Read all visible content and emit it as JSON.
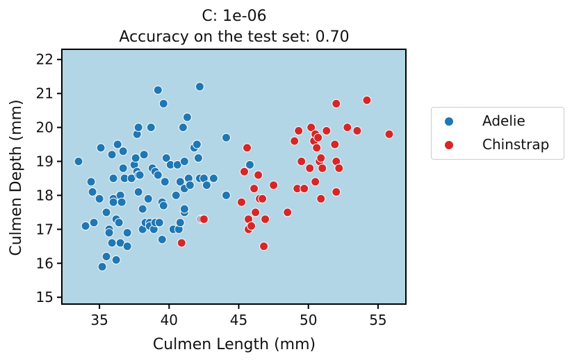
{
  "chart_data": {
    "type": "scatter",
    "title_line1": "C: 1e-06",
    "title_line2": "Accuracy on the test set: 0.70",
    "xlabel": "Culmen Length (mm)",
    "ylabel": "Culmen Depth (mm)",
    "xlim": [
      32.3,
      57.0
    ],
    "ylim": [
      14.8,
      22.3
    ],
    "xticks": [
      35,
      40,
      45,
      50,
      55
    ],
    "yticks": [
      15,
      16,
      17,
      18,
      19,
      20,
      21,
      22
    ],
    "background_color": "#b3d6e6",
    "grid": false,
    "legend_position": "outside-right",
    "series": [
      {
        "name": "Adelie",
        "color": "#1f77b4",
        "points": [
          [
            33.5,
            19.0
          ],
          [
            34.0,
            17.1
          ],
          [
            34.4,
            18.4
          ],
          [
            34.5,
            18.1
          ],
          [
            34.6,
            17.2
          ],
          [
            35.0,
            17.9
          ],
          [
            35.1,
            19.4
          ],
          [
            35.2,
            15.9
          ],
          [
            35.5,
            17.5
          ],
          [
            35.5,
            16.2
          ],
          [
            35.7,
            17.0
          ],
          [
            35.7,
            16.9
          ],
          [
            35.9,
            19.2
          ],
          [
            35.9,
            16.6
          ],
          [
            36.0,
            17.9
          ],
          [
            36.0,
            17.8
          ],
          [
            36.0,
            18.5
          ],
          [
            36.2,
            17.3
          ],
          [
            36.2,
            16.1
          ],
          [
            36.3,
            19.5
          ],
          [
            36.4,
            17.2
          ],
          [
            36.5,
            18.0
          ],
          [
            36.5,
            16.6
          ],
          [
            36.6,
            17.8
          ],
          [
            36.7,
            18.8
          ],
          [
            36.7,
            19.3
          ],
          [
            36.8,
            18.5
          ],
          [
            37.0,
            16.9
          ],
          [
            37.0,
            16.5
          ],
          [
            37.3,
            18.5
          ],
          [
            37.5,
            18.9
          ],
          [
            37.6,
            19.1
          ],
          [
            37.7,
            18.7
          ],
          [
            37.7,
            19.8
          ],
          [
            37.8,
            20.0
          ],
          [
            37.8,
            18.1
          ],
          [
            37.8,
            18.6
          ],
          [
            37.9,
            18.6
          ],
          [
            38.1,
            17.6
          ],
          [
            38.1,
            17.0
          ],
          [
            38.2,
            19.2
          ],
          [
            38.3,
            17.2
          ],
          [
            38.5,
            17.9
          ],
          [
            38.6,
            17.2
          ],
          [
            38.6,
            17.1
          ],
          [
            38.7,
            20.0
          ],
          [
            38.8,
            18.8
          ],
          [
            38.9,
            17.0
          ],
          [
            39.0,
            18.7
          ],
          [
            39.0,
            17.2
          ],
          [
            39.2,
            21.1
          ],
          [
            39.2,
            18.6
          ],
          [
            39.3,
            17.2
          ],
          [
            39.5,
            17.8
          ],
          [
            39.5,
            16.7
          ],
          [
            39.6,
            20.7
          ],
          [
            39.6,
            17.7
          ],
          [
            39.7,
            18.4
          ],
          [
            39.8,
            19.1
          ],
          [
            40.1,
            18.9
          ],
          [
            40.3,
            17.0
          ],
          [
            40.5,
            18.0
          ],
          [
            40.6,
            18.9
          ],
          [
            40.7,
            17.0
          ],
          [
            40.8,
            18.4
          ],
          [
            40.8,
            17.2
          ],
          [
            41.0,
            20.0
          ],
          [
            41.1,
            17.5
          ],
          [
            41.1,
            19.0
          ],
          [
            41.1,
            18.2
          ],
          [
            41.1,
            17.6
          ],
          [
            41.3,
            20.3
          ],
          [
            41.4,
            18.5
          ],
          [
            41.5,
            18.3
          ],
          [
            41.8,
            19.4
          ],
          [
            42.0,
            19.5
          ],
          [
            42.1,
            19.1
          ],
          [
            42.2,
            18.5
          ],
          [
            42.2,
            21.2
          ],
          [
            42.3,
            17.3
          ],
          [
            42.5,
            18.5
          ],
          [
            42.7,
            18.3
          ],
          [
            43.2,
            18.5
          ],
          [
            44.1,
            19.7
          ],
          [
            44.1,
            18.0
          ],
          [
            45.8,
            18.9
          ]
        ]
      },
      {
        "name": "Chinstrap",
        "color": "#d62728",
        "points": [
          [
            40.9,
            16.6
          ],
          [
            42.4,
            17.3
          ],
          [
            42.5,
            17.3
          ],
          [
            45.2,
            17.8
          ],
          [
            45.4,
            18.7
          ],
          [
            45.6,
            19.4
          ],
          [
            45.7,
            17.3
          ],
          [
            45.7,
            17.0
          ],
          [
            45.9,
            17.1
          ],
          [
            46.1,
            18.2
          ],
          [
            46.2,
            17.5
          ],
          [
            46.4,
            18.6
          ],
          [
            46.5,
            17.9
          ],
          [
            46.7,
            17.9
          ],
          [
            46.8,
            16.5
          ],
          [
            46.9,
            17.3
          ],
          [
            47.5,
            18.3
          ],
          [
            48.5,
            17.5
          ],
          [
            49.0,
            19.6
          ],
          [
            49.2,
            18.2
          ],
          [
            49.3,
            19.9
          ],
          [
            49.5,
            19.0
          ],
          [
            49.7,
            18.2
          ],
          [
            50.1,
            18.8
          ],
          [
            50.2,
            20.0
          ],
          [
            50.4,
            19.6
          ],
          [
            50.5,
            18.4
          ],
          [
            50.5,
            19.8
          ],
          [
            50.6,
            19.4
          ],
          [
            50.7,
            19.7
          ],
          [
            50.8,
            19.0
          ],
          [
            50.9,
            19.1
          ],
          [
            50.9,
            17.9
          ],
          [
            51.0,
            18.8
          ],
          [
            51.3,
            19.9
          ],
          [
            51.9,
            19.5
          ],
          [
            52.0,
            20.7
          ],
          [
            52.0,
            19.0
          ],
          [
            52.0,
            18.1
          ],
          [
            52.2,
            18.8
          ],
          [
            52.8,
            20.0
          ],
          [
            53.5,
            19.9
          ],
          [
            54.2,
            20.8
          ],
          [
            55.8,
            19.8
          ]
        ]
      }
    ]
  }
}
